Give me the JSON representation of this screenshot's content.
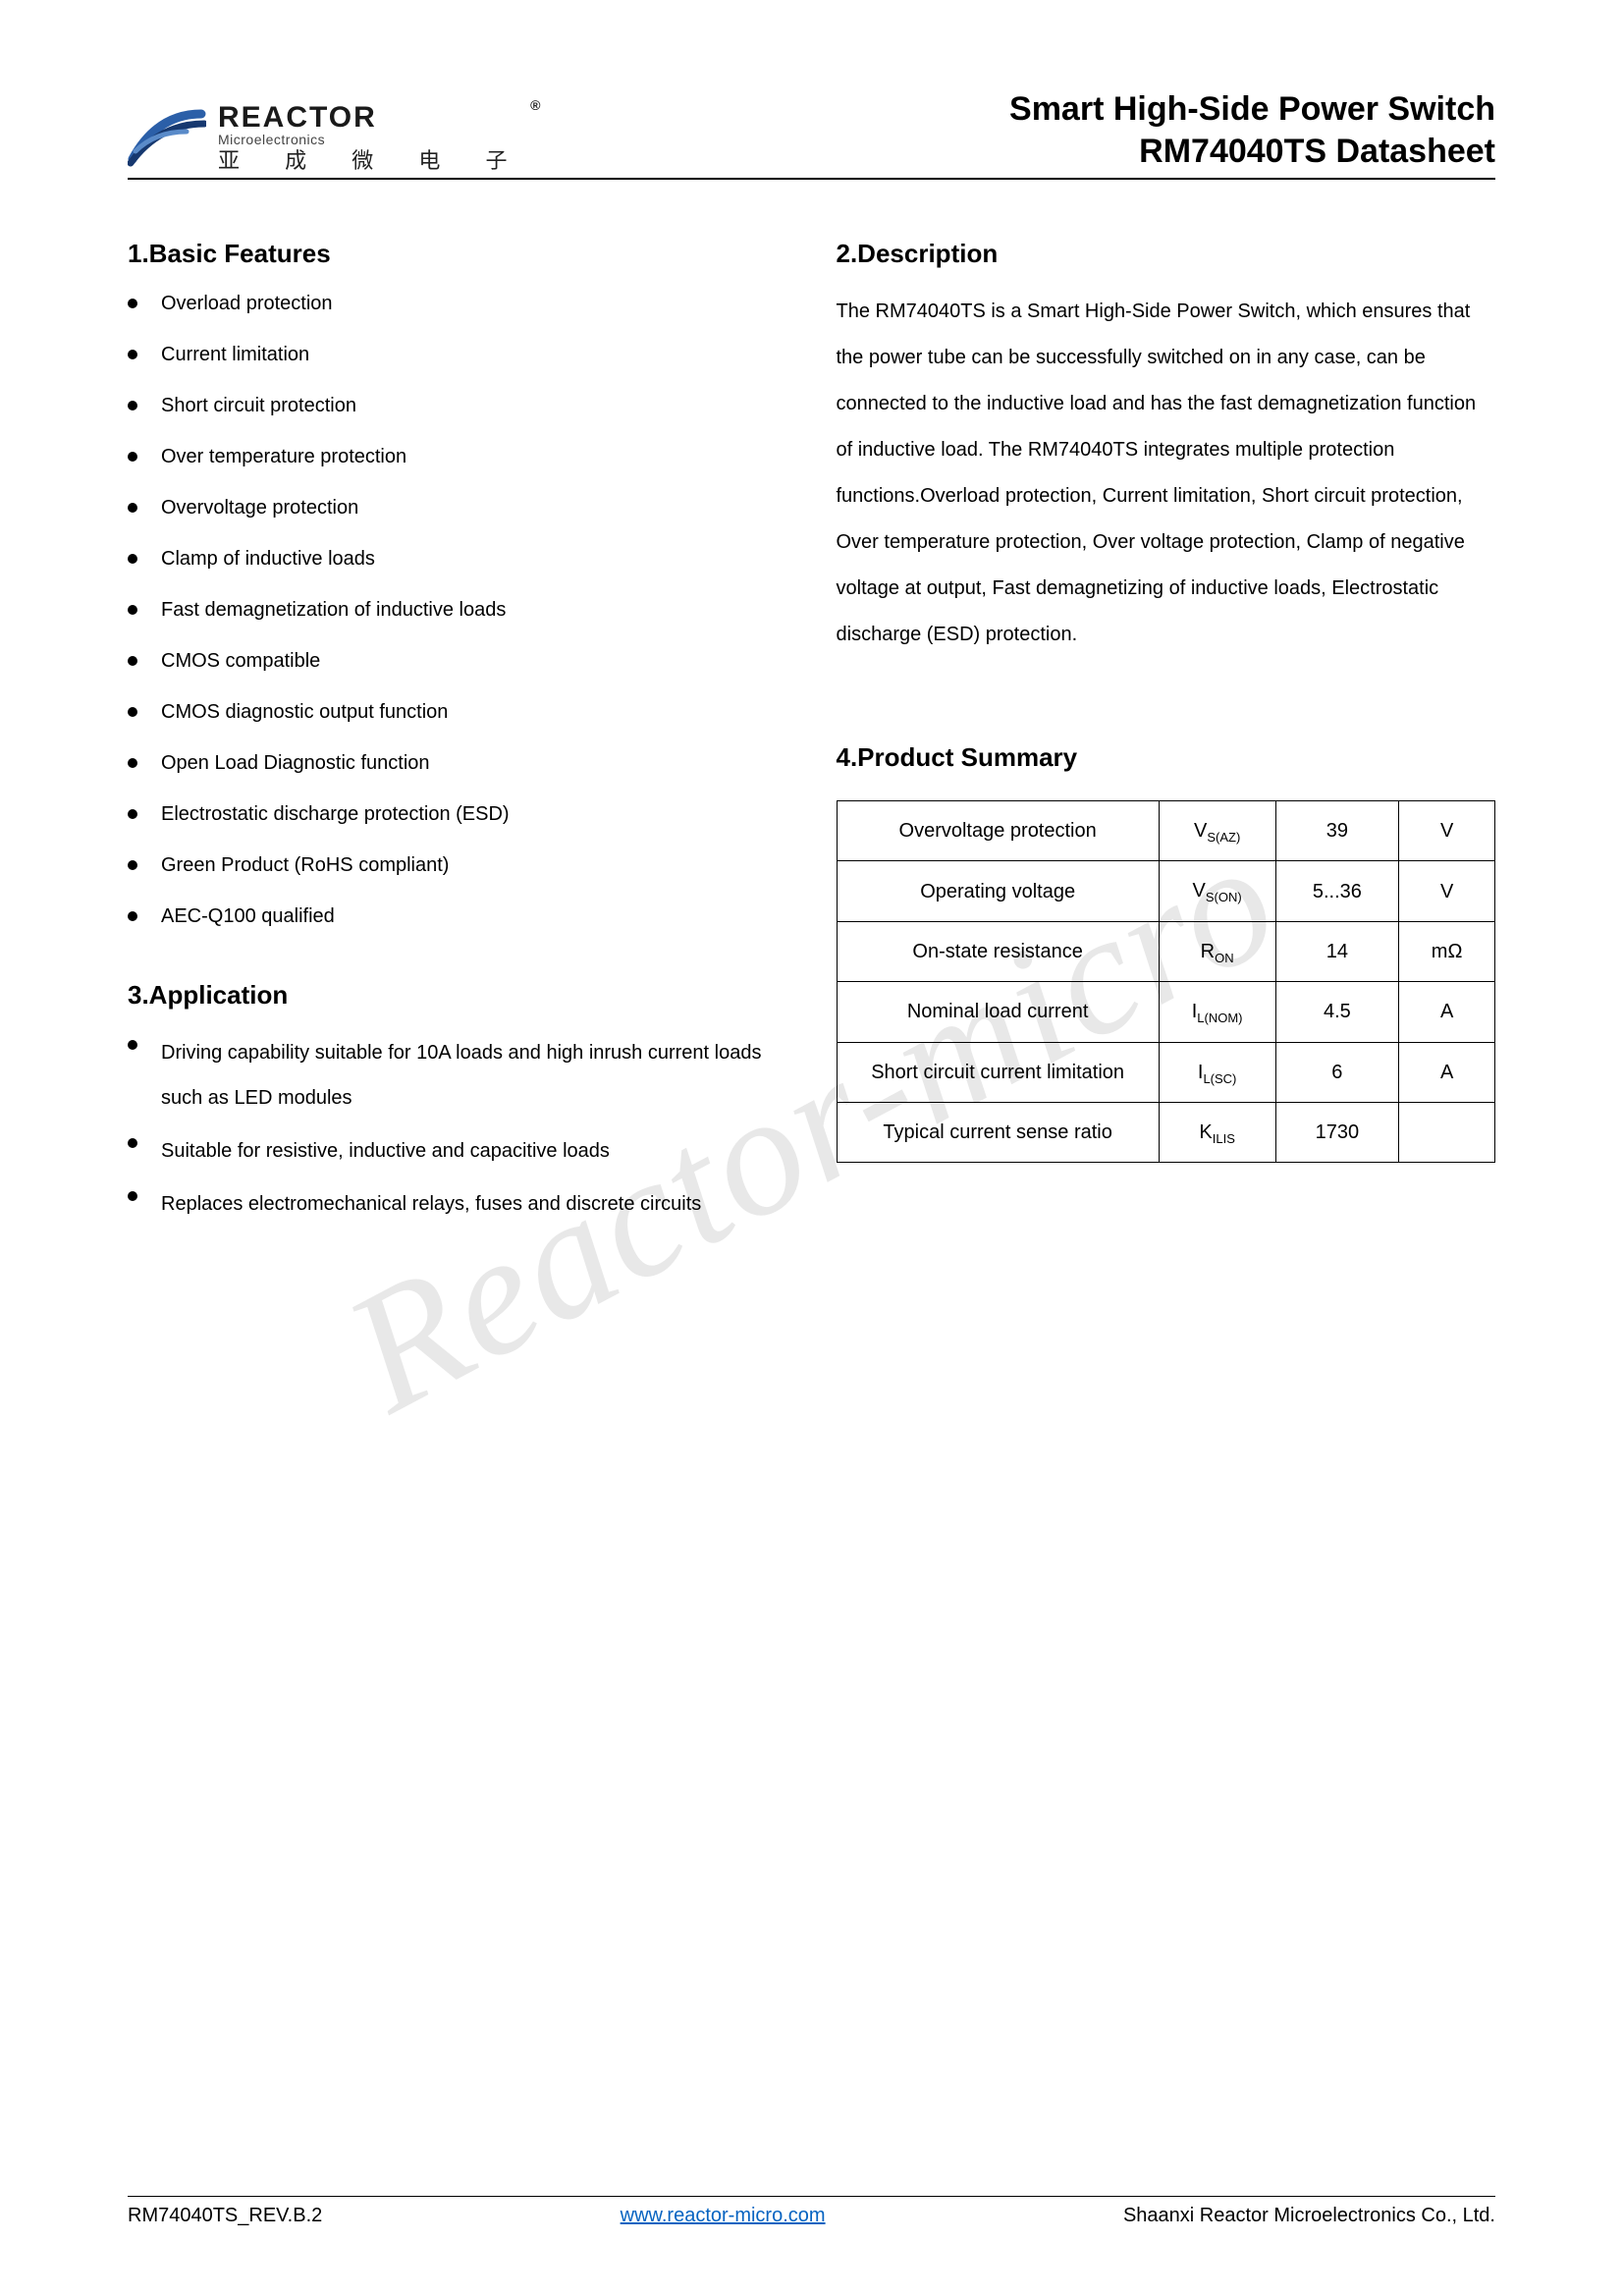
{
  "watermark": "Reactor-micro",
  "logo": {
    "main": "REACTOR",
    "reg": "®",
    "sub": "Microelectronics",
    "cn": "亚 成 微 电 子"
  },
  "header": {
    "line1": "Smart High-Side Power Switch",
    "line2": "RM74040TS  Datasheet"
  },
  "sections": {
    "features_title": "1.Basic Features",
    "description_title": "2.Description",
    "application_title": "3.Application",
    "summary_title": "4.Product Summary"
  },
  "features": [
    "Overload protection",
    "Current limitation",
    "Short circuit protection",
    "Over temperature protection",
    "Overvoltage protection",
    "Clamp of inductive loads",
    "Fast demagnetization of inductive loads",
    "CMOS compatible",
    "CMOS diagnostic output function",
    "Open Load Diagnostic function",
    "Electrostatic discharge protection (ESD)",
    "Green Product (RoHS compliant)",
    "AEC-Q100 qualified"
  ],
  "description": "The RM74040TS is a Smart High-Side Power Switch, which ensures that the power tube can be successfully switched on in any case, can be connected to the inductive load and has the fast demagnetization function of inductive load. The RM74040TS integrates multiple protection functions.Overload protection, Current limitation, Short circuit protection, Over temperature protection, Over voltage protection, Clamp of negative voltage at output, Fast demagnetizing of inductive loads, Electrostatic discharge (ESD) protection.",
  "applications": [
    "Driving capability suitable for 10A loads and high inrush current loads such as LED modules",
    "Suitable for resistive, inductive and capacitive loads",
    "Replaces electromechanical relays, fuses and discrete circuits"
  ],
  "summary": {
    "rows": [
      {
        "param": "Overvoltage protection",
        "sym_main": "V",
        "sym_sub": "S(AZ)",
        "val": "39",
        "unit": "V"
      },
      {
        "param": "Operating voltage",
        "sym_main": "V",
        "sym_sub": "S(ON)",
        "val": "5...36",
        "unit": "V"
      },
      {
        "param": "On-state resistance",
        "sym_main": "R",
        "sym_sub": "ON",
        "val": "14",
        "unit": "mΩ"
      },
      {
        "param": "Nominal load current",
        "sym_main": "I",
        "sym_sub": "L(NOM)",
        "val": "4.5",
        "unit": "A"
      },
      {
        "param": "Short circuit current limitation",
        "sym_main": "I",
        "sym_sub": "L(SC)",
        "val": "6",
        "unit": "A"
      },
      {
        "param": "Typical current sense ratio",
        "sym_main": "K",
        "sym_sub": "ILIS",
        "val": "1730",
        "unit": ""
      }
    ]
  },
  "footer": {
    "left": "RM74040TS_REV.B.2",
    "link": "www.reactor-micro.com",
    "right": "Shaanxi Reactor Microelectronics Co., Ltd."
  },
  "colors": {
    "link": "#0563c1",
    "watermark": "#e8e8e8",
    "logo_blue1": "#2b5fa8",
    "logo_blue2": "#16386f"
  }
}
